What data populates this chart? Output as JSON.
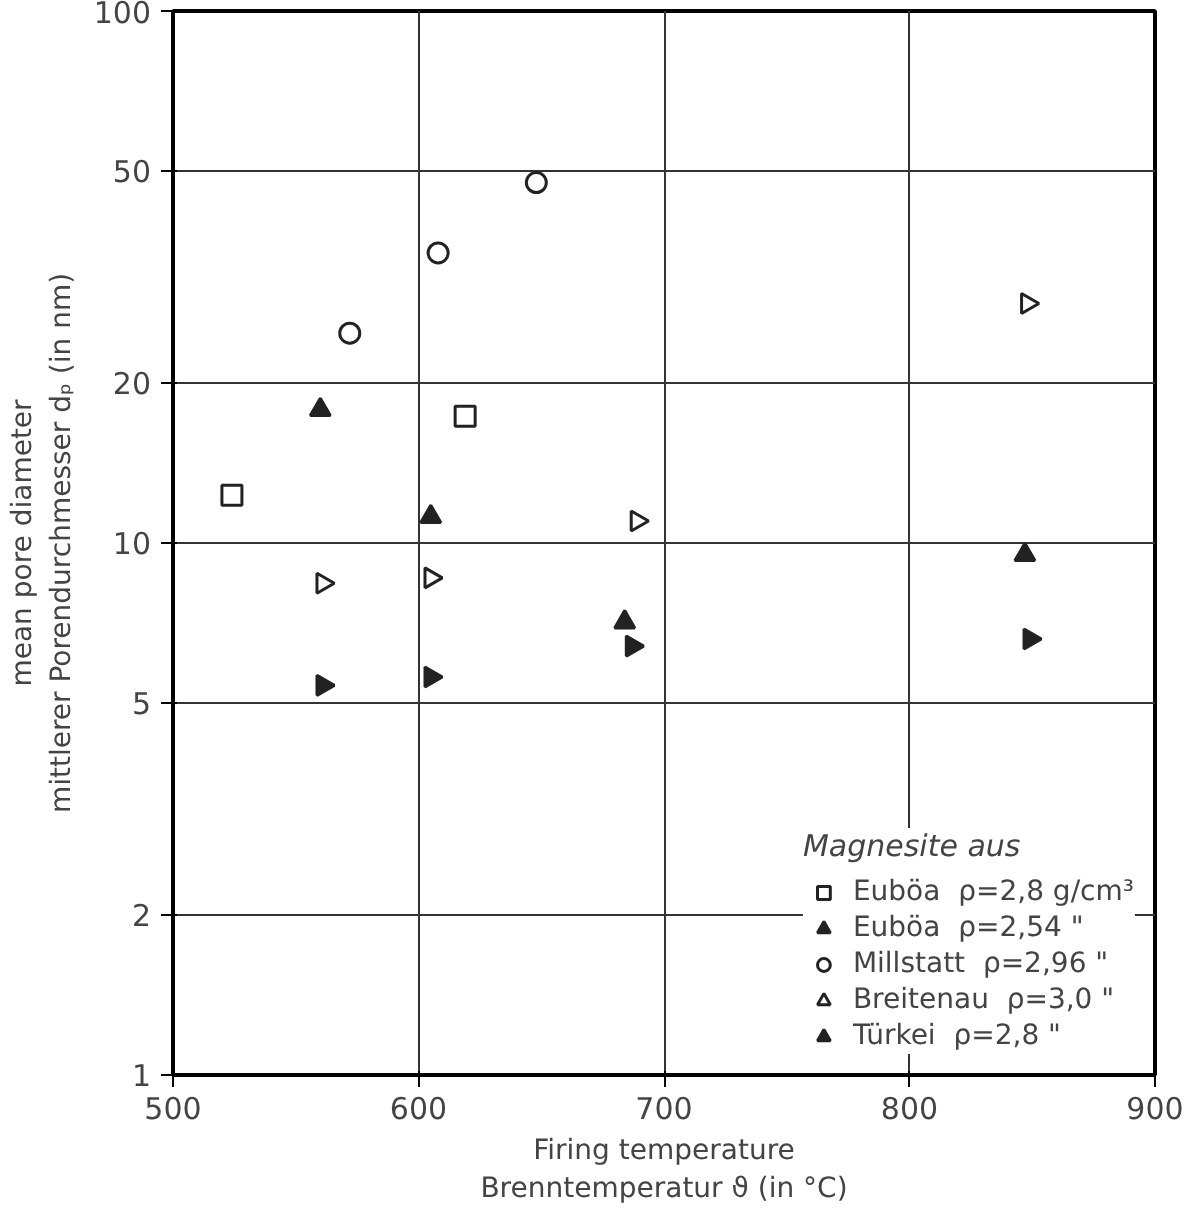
{
  "chart_data": {
    "type": "scatter",
    "xlabel": "Firing temperature\nBrenntemperatur ϑ (in °C)",
    "ylabel": "mean pore diameter\nmittlerer Porendurchmesser dₚ (in nm)",
    "legend_title": "Magnesite aus",
    "xlim": [
      500,
      900
    ],
    "xticks": [
      500,
      600,
      700,
      800,
      900
    ],
    "ylim": [
      1,
      100
    ],
    "yticks": [
      1,
      2,
      5,
      10,
      20,
      50,
      100
    ],
    "log": "y",
    "grid": true,
    "legend": "bottom right",
    "series": [
      {
        "name": "Euböa  ρ=2,8 g/cm³",
        "color": "#222222",
        "marker": "square_open",
        "x": [
          524,
          619
        ],
        "values": [
          12.3,
          17.3
        ]
      },
      {
        "name": "Euböa  ρ=2,54 \"",
        "color": "#222222",
        "marker": "triangle",
        "x": [
          560,
          605,
          684,
          847
        ],
        "values": [
          17.8,
          11.2,
          7.1,
          9.5
        ]
      },
      {
        "name": "Millstatt  ρ=2,96 \"",
        "color": "#222222",
        "marker": "circle_open",
        "x": [
          572,
          608,
          648
        ],
        "values": [
          24.8,
          35.1,
          47.6
        ]
      },
      {
        "name": "Breitenau  ρ=3,0 \"",
        "color": "#222222",
        "marker": "triangle_right_open",
        "x": [
          561,
          605,
          689,
          848
        ],
        "values": [
          8.4,
          8.6,
          11.0,
          28.2
        ]
      },
      {
        "name": "Türkei  ρ=2,8 \"",
        "color": "#222222",
        "marker": "triangle_right",
        "x": [
          561,
          605,
          687,
          849
        ],
        "values": [
          5.4,
          5.6,
          6.4,
          6.6
        ]
      }
    ]
  }
}
